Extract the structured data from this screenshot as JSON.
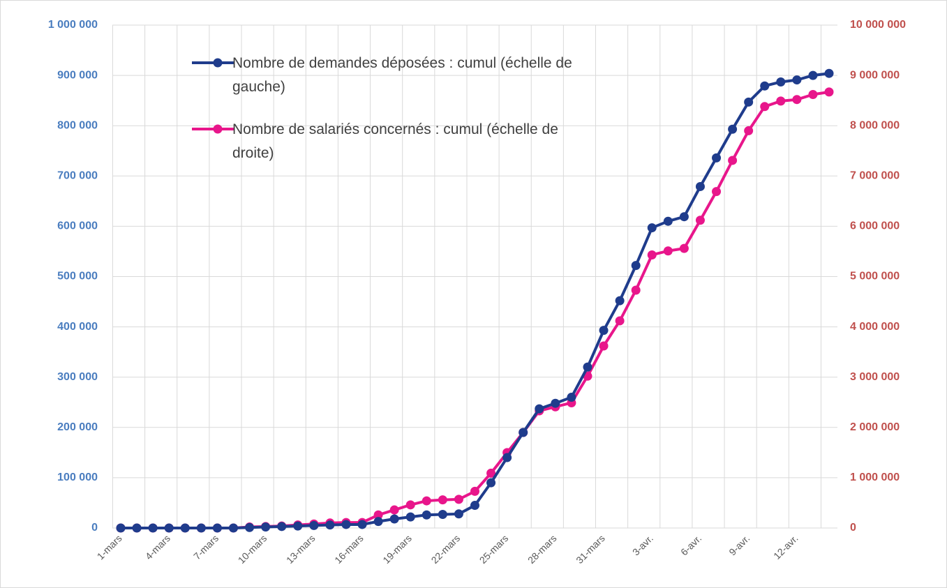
{
  "chart_data": {
    "type": "line",
    "categories": [
      "1-mars",
      null,
      null,
      "4-mars",
      null,
      null,
      "7-mars",
      null,
      null,
      "10-mars",
      null,
      null,
      "13-mars",
      null,
      null,
      "16-mars",
      null,
      null,
      "19-mars",
      null,
      null,
      "22-mars",
      null,
      null,
      "25-mars",
      null,
      null,
      "28-mars",
      null,
      null,
      "31-mars",
      null,
      null,
      "3-avr.",
      null,
      null,
      "6-avr.",
      null,
      null,
      "9-avr.",
      null,
      null,
      "12-avr.",
      null,
      null
    ],
    "series": [
      {
        "name": "Nombre de demandes déposées : cumul (échelle de gauche)",
        "color": "#1f3c8c",
        "axis": "y",
        "values": [
          0,
          0,
          0,
          0,
          0,
          0,
          0,
          0,
          1000,
          2000,
          3000,
          4000,
          5000,
          6000,
          7000,
          7000,
          13000,
          18000,
          22000,
          26000,
          27000,
          28000,
          45000,
          90000,
          140000,
          190000,
          237000,
          248000,
          260000,
          320000,
          393000,
          452000,
          522000,
          597000,
          610000,
          619000,
          679000,
          736000,
          793000,
          847000,
          879000,
          887000,
          891000,
          900000,
          904000
        ]
      },
      {
        "name": "Nombre de salariés concernés : cumul (échelle de droite)",
        "color": "#e8168b",
        "axis": "y2",
        "values": [
          0,
          0,
          0,
          0,
          0,
          0,
          0,
          0,
          20000,
          30000,
          40000,
          60000,
          80000,
          100000,
          110000,
          110000,
          260000,
          360000,
          460000,
          540000,
          560000,
          570000,
          730000,
          1090000,
          1500000,
          1900000,
          2330000,
          2410000,
          2490000,
          3020000,
          3620000,
          4120000,
          4730000,
          5430000,
          5510000,
          5560000,
          6120000,
          6690000,
          7310000,
          7900000,
          8380000,
          8490000,
          8520000,
          8620000,
          8670000
        ]
      }
    ],
    "ylim": [
      0,
      1000000
    ],
    "yticks": [
      0,
      {
        "value": 100000,
        "label": "100 000"
      },
      {
        "value": 200000,
        "label": "200 000"
      },
      {
        "value": 300000,
        "label": "300 000"
      },
      {
        "value": 400000,
        "label": "400 000"
      },
      {
        "value": 500000,
        "label": "500 000"
      },
      {
        "value": 600000,
        "label": "600 000"
      },
      {
        "value": 700000,
        "label": "700 000"
      },
      {
        "value": 800000,
        "label": "800 000"
      },
      {
        "value": 900000,
        "label": "900 000"
      },
      {
        "value": 1000000,
        "label": "1 000 000"
      }
    ],
    "y2lim": [
      0,
      10000000
    ],
    "y2ticks": [
      0,
      {
        "value": 1000000,
        "label": "1 000 000"
      },
      {
        "value": 2000000,
        "label": "2 000 000"
      },
      {
        "value": 3000000,
        "label": "3 000 000"
      },
      {
        "value": 4000000,
        "label": "4 000 000"
      },
      {
        "value": 5000000,
        "label": "5 000 000"
      },
      {
        "value": 6000000,
        "label": "6 000 000"
      },
      {
        "value": 7000000,
        "label": "7 000 000"
      },
      {
        "value": 8000000,
        "label": "8 000 000"
      },
      {
        "value": 9000000,
        "label": "9 000 000"
      },
      {
        "value": 10000000,
        "label": "10 000 000"
      }
    ],
    "ytick_color": "#4a7dbf",
    "y2tick_color": "#c0504d",
    "grid": true
  }
}
